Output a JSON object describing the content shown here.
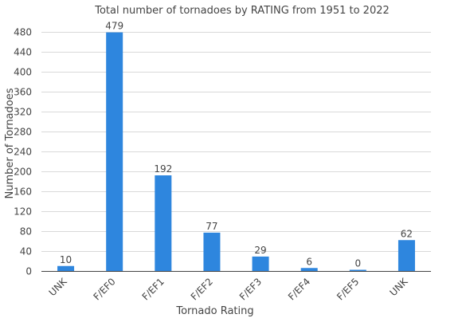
{
  "chart_data": {
    "type": "bar",
    "title": "Total number of tornadoes by RATING from 1951 to 2022",
    "xlabel": "Tornado Rating",
    "ylabel": "Number of Tornadoes",
    "categories": [
      "UNK",
      "F/EF0",
      "F/EF1",
      "F/EF2",
      "F/EF3",
      "F/EF4",
      "F/EF5",
      "UNK"
    ],
    "values": [
      10,
      479,
      192,
      77,
      29,
      6,
      0,
      62
    ],
    "data_labels": [
      "10",
      "479",
      "192",
      "77",
      "29",
      "6",
      "0",
      "62"
    ],
    "ylim": [
      0,
      480
    ],
    "yticks": [
      0,
      40,
      80,
      120,
      160,
      200,
      240,
      280,
      320,
      360,
      400,
      440,
      480
    ],
    "ytick_labels": [
      "0",
      "40",
      "80",
      "120",
      "160",
      "200",
      "240",
      "280",
      "320",
      "360",
      "400",
      "440",
      "480"
    ],
    "grid": true,
    "legend": "none",
    "bar_color": "#2e86de"
  }
}
